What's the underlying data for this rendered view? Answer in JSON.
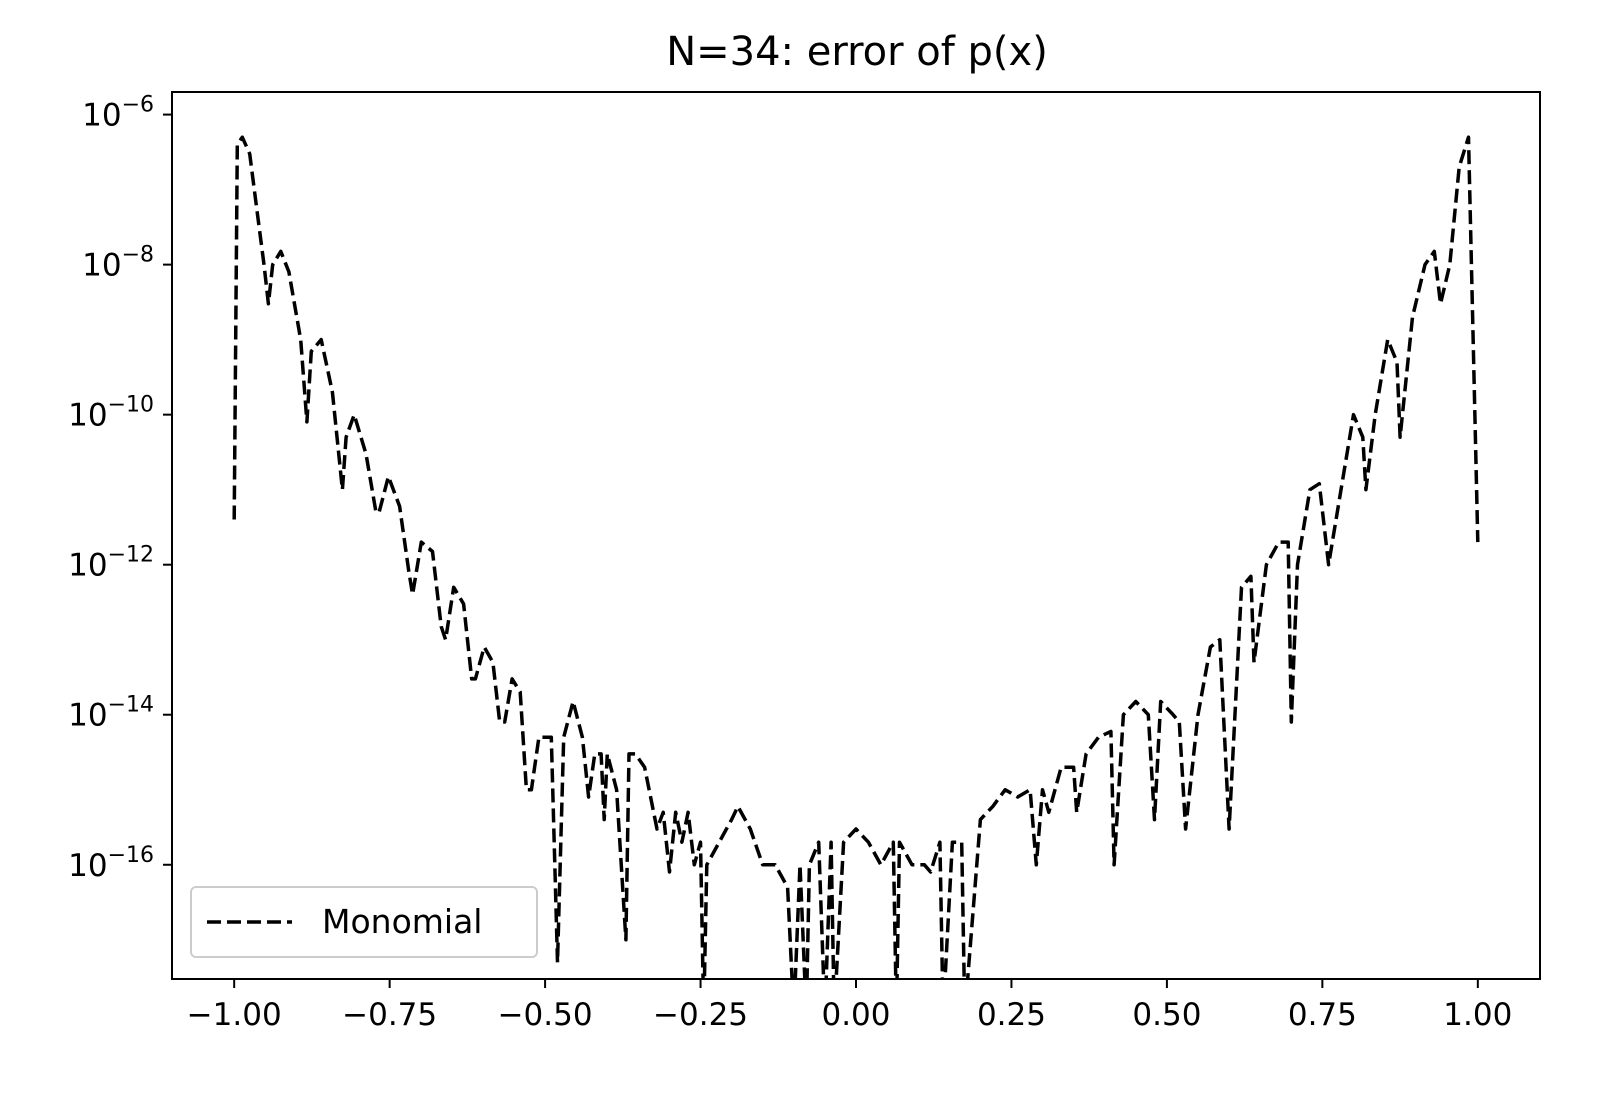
{
  "chart_data": {
    "type": "line",
    "title": "N=34: error of p(x)",
    "xlabel": "",
    "ylabel": "",
    "xlim": [
      -1.1,
      1.1
    ],
    "ylim": [
      3e-18,
      2e-06
    ],
    "yscale": "log",
    "grid": false,
    "legend_position": "lower-left",
    "x_ticks": [
      -1.0,
      -0.75,
      -0.5,
      -0.25,
      0.0,
      0.25,
      0.5,
      0.75,
      1.0
    ],
    "x_tick_labels": [
      "−1.00",
      "−0.75",
      "−0.50",
      "−0.25",
      "0.00",
      "0.25",
      "0.50",
      "0.75",
      "1.00"
    ],
    "y_ticks": [
      {
        "value": 1e-16,
        "base": "10",
        "exp": "−16"
      },
      {
        "value": 1e-14,
        "base": "10",
        "exp": "−14"
      },
      {
        "value": 1e-12,
        "base": "10",
        "exp": "−12"
      },
      {
        "value": 1e-10,
        "base": "10",
        "exp": "−10"
      },
      {
        "value": 1e-08,
        "base": "10",
        "exp": "−8"
      },
      {
        "value": 1e-06,
        "base": "10",
        "exp": "−6"
      }
    ],
    "series": [
      {
        "name": "Monomial",
        "color": "#000000",
        "style": "dashed",
        "x": [
          -1.0,
          -0.995,
          -0.987,
          -0.975,
          -0.963,
          -0.952,
          -0.945,
          -0.938,
          -0.925,
          -0.912,
          -0.893,
          -0.883,
          -0.876,
          -0.86,
          -0.842,
          -0.826,
          -0.82,
          -0.807,
          -0.788,
          -0.772,
          -0.767,
          -0.752,
          -0.734,
          -0.719,
          -0.713,
          -0.699,
          -0.681,
          -0.667,
          -0.66,
          -0.647,
          -0.631,
          -0.618,
          -0.612,
          -0.598,
          -0.584,
          -0.573,
          -0.565,
          -0.553,
          -0.54,
          -0.53,
          -0.522,
          -0.51,
          -0.49,
          -0.48,
          -0.47,
          -0.455,
          -0.44,
          -0.43,
          -0.42,
          -0.41,
          -0.405,
          -0.4,
          -0.385,
          -0.37,
          -0.365,
          -0.355,
          -0.34,
          -0.32,
          -0.31,
          -0.3,
          -0.29,
          -0.28,
          -0.27,
          -0.26,
          -0.25,
          -0.245,
          -0.24,
          -0.22,
          -0.2,
          -0.19,
          -0.17,
          -0.15,
          -0.13,
          -0.11,
          -0.1,
          -0.09,
          -0.08,
          -0.075,
          -0.06,
          -0.05,
          -0.04,
          -0.035,
          -0.02,
          0.0,
          0.02,
          0.04,
          0.06,
          0.065,
          0.07,
          0.09,
          0.11,
          0.12,
          0.135,
          0.14,
          0.155,
          0.17,
          0.175,
          0.2,
          0.22,
          0.24,
          0.26,
          0.28,
          0.29,
          0.3,
          0.31,
          0.33,
          0.35,
          0.355,
          0.37,
          0.39,
          0.41,
          0.415,
          0.43,
          0.45,
          0.47,
          0.48,
          0.49,
          0.51,
          0.52,
          0.53,
          0.55,
          0.57,
          0.585,
          0.6,
          0.62,
          0.635,
          0.64,
          0.66,
          0.68,
          0.695,
          0.7,
          0.71,
          0.73,
          0.745,
          0.76,
          0.78,
          0.8,
          0.815,
          0.82,
          0.835,
          0.855,
          0.87,
          0.875,
          0.895,
          0.915,
          0.93,
          0.94,
          0.955,
          0.97,
          0.985,
          1.0
        ],
        "y": [
          4e-12,
          4e-07,
          5e-07,
          3e-07,
          5e-08,
          1e-08,
          3e-09,
          1e-08,
          1.5e-08,
          8e-09,
          1e-09,
          8e-11,
          7e-10,
          1e-09,
          2e-10,
          1e-11,
          5e-11,
          1e-10,
          3e-11,
          5e-12,
          5e-12,
          1.5e-11,
          6e-12,
          8e-13,
          4e-13,
          2e-12,
          1.5e-12,
          1.5e-13,
          1e-13,
          5e-13,
          3e-13,
          3e-14,
          3e-14,
          8e-14,
          5e-14,
          8e-15,
          8e-15,
          3e-14,
          2e-14,
          1e-15,
          1e-15,
          5e-15,
          5e-15,
          5e-18,
          5e-15,
          1.5e-14,
          5e-15,
          8e-16,
          3e-15,
          3e-15,
          4e-16,
          3e-15,
          1e-15,
          1e-17,
          3e-15,
          3e-15,
          2e-15,
          3e-16,
          5e-16,
          8e-17,
          5e-16,
          2e-16,
          5e-16,
          1e-16,
          2e-16,
          1e-18,
          1e-16,
          2e-16,
          4e-16,
          6e-16,
          3e-16,
          1e-16,
          1e-16,
          5e-17,
          1e-18,
          1e-16,
          1e-18,
          1e-16,
          2e-16,
          1e-18,
          2e-16,
          1e-18,
          2e-16,
          3e-16,
          2e-16,
          1e-16,
          2e-16,
          1e-18,
          2e-16,
          1e-16,
          1e-16,
          8e-17,
          2e-16,
          1e-18,
          2e-16,
          2e-16,
          1e-18,
          4e-16,
          6e-16,
          1e-15,
          8e-16,
          1e-15,
          1e-16,
          1e-15,
          5e-16,
          2e-15,
          2e-15,
          5e-16,
          3e-15,
          5e-15,
          6e-15,
          1e-16,
          1e-14,
          1.5e-14,
          1e-14,
          4e-16,
          1.5e-14,
          1e-14,
          8e-15,
          3e-16,
          1e-14,
          8e-14,
          1e-13,
          3e-16,
          5e-13,
          7e-13,
          5e-14,
          1e-12,
          2e-12,
          2e-12,
          8e-15,
          1e-12,
          1e-11,
          1.2e-11,
          1e-12,
          1e-11,
          1e-10,
          5e-11,
          1e-11,
          1e-10,
          1e-09,
          5e-10,
          5e-11,
          2e-09,
          1e-08,
          1.5e-08,
          3e-09,
          1e-08,
          2e-07,
          5e-07,
          2e-12
        ]
      }
    ]
  }
}
